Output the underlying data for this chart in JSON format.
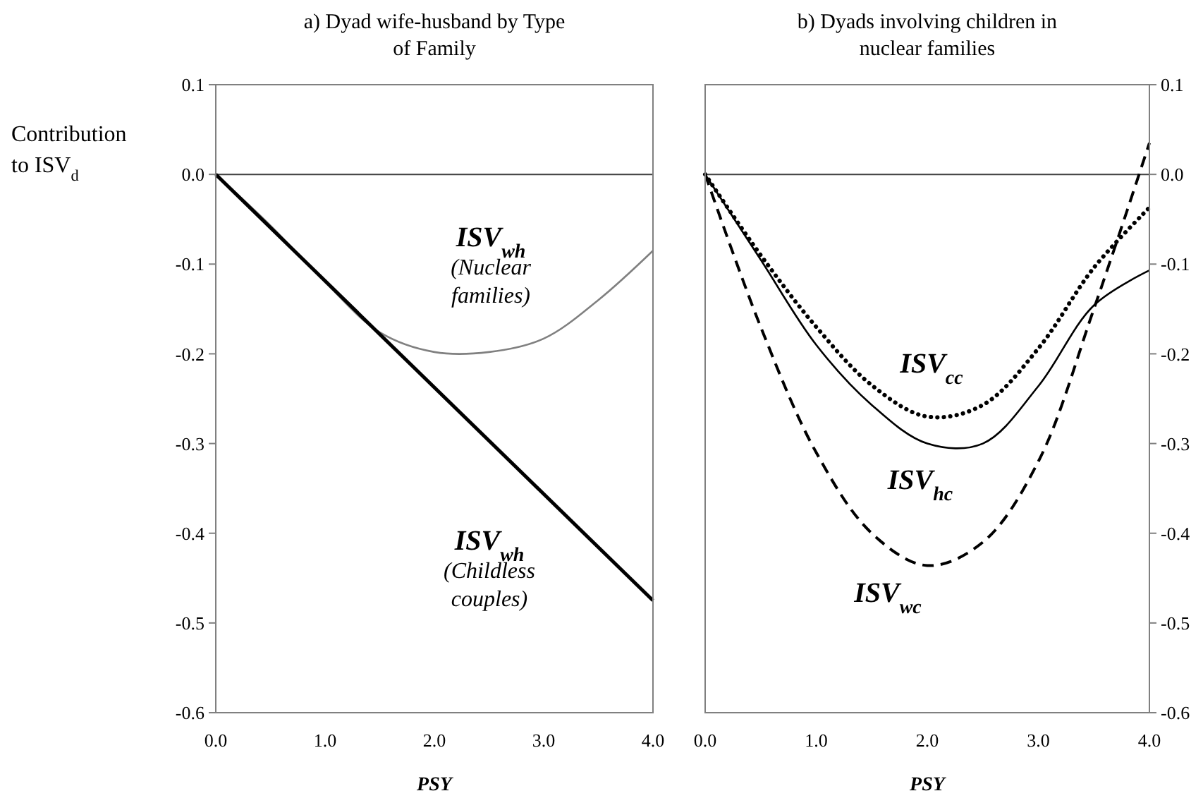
{
  "chart_data": [
    {
      "type": "line",
      "title": "a) Dyad wife-husband by Type\nof Family",
      "xlabel": "PSY",
      "ylabel": "Contribution\nto ISV$_{d}$",
      "x": [
        0,
        0.5,
        1,
        1.5,
        2,
        2.5,
        3,
        3.5,
        4
      ],
      "series": [
        {
          "name": "ISV$_{wh}$\n(Nuclear\nfamilies)",
          "color": "#808080",
          "line_style": "solid",
          "values": [
            0,
            -0.057,
            -0.12,
            -0.176,
            -0.198,
            -0.198,
            -0.183,
            -0.14,
            -0.085
          ]
        },
        {
          "name": "ISV$_{wh}$\n(Childless\ncouples)",
          "color": "#000000",
          "line_style": "solid",
          "x": [
            0,
            4
          ],
          "values": [
            0,
            -0.475
          ]
        }
      ],
      "xlim": [
        0,
        4
      ],
      "xticks": [
        {
          "value": 0,
          "label": "0.0"
        },
        {
          "value": 1,
          "label": "1.0"
        },
        {
          "value": 2,
          "label": "2.0"
        },
        {
          "value": 3,
          "label": "3.0"
        },
        {
          "value": 4,
          "label": "4.0"
        }
      ],
      "ylim": [
        -0.6,
        0.1
      ],
      "yticks": [
        {
          "value": -0.6,
          "label": "-0.6"
        },
        {
          "value": -0.5,
          "label": "-0.5"
        },
        {
          "value": -0.4,
          "label": "-0.4"
        },
        {
          "value": -0.3,
          "label": "-0.3"
        },
        {
          "value": -0.2,
          "label": "-0.2"
        },
        {
          "value": -0.1,
          "label": "-0.1"
        },
        {
          "value": 0,
          "label": "0.0"
        },
        {
          "value": 0.1,
          "label": "0.1"
        }
      ],
      "ref_lines": [
        {
          "axis": "y",
          "value": 0,
          "color": "#404040"
        }
      ]
    },
    {
      "type": "line",
      "title": "b) Dyads involving children in\nnuclear families",
      "xlabel": "PSY",
      "x": [
        0,
        0.5,
        1,
        1.5,
        2,
        2.5,
        3,
        3.5,
        4
      ],
      "series": [
        {
          "name": "ISV$_{hc}$",
          "color": "#000000",
          "line_style": "solid",
          "axis": "y2",
          "values": [
            0,
            -0.095,
            -0.19,
            -0.257,
            -0.3,
            -0.3,
            -0.236,
            -0.146,
            -0.107
          ]
        },
        {
          "name": "ISV$_{cc}$",
          "color": "#000000",
          "line_style": "dotted",
          "axis": "y2",
          "values": [
            0,
            -0.09,
            -0.17,
            -0.235,
            -0.27,
            -0.257,
            -0.194,
            -0.104,
            -0.037
          ]
        },
        {
          "name": "ISV$_{wc}$",
          "color": "#000000",
          "line_style": "dashed",
          "axis": "y2",
          "values": [
            0,
            -0.17,
            -0.31,
            -0.4,
            -0.436,
            -0.41,
            -0.32,
            -0.15,
            0.035
          ]
        }
      ],
      "xlim": [
        0,
        4
      ],
      "xticks": [
        {
          "value": 0,
          "label": "0.0"
        },
        {
          "value": 1,
          "label": "1.0"
        },
        {
          "value": 2,
          "label": "2.0"
        },
        {
          "value": 3,
          "label": "3.0"
        },
        {
          "value": 4,
          "label": "4.0"
        }
      ],
      "y2lim": [
        -0.6,
        0.1
      ],
      "y2ticks": [
        {
          "value": -0.6,
          "label": "-0.6"
        },
        {
          "value": -0.5,
          "label": "-0.5"
        },
        {
          "value": -0.4,
          "label": "-0.4"
        },
        {
          "value": -0.3,
          "label": "-0.3"
        },
        {
          "value": -0.2,
          "label": "-0.2"
        },
        {
          "value": -0.1,
          "label": "-0.1"
        },
        {
          "value": 0,
          "label": "0.0"
        },
        {
          "value": 0.1,
          "label": "0.1"
        }
      ],
      "ref_lines": [
        {
          "axis": "y2",
          "value": 0,
          "color": "#404040"
        }
      ]
    }
  ]
}
